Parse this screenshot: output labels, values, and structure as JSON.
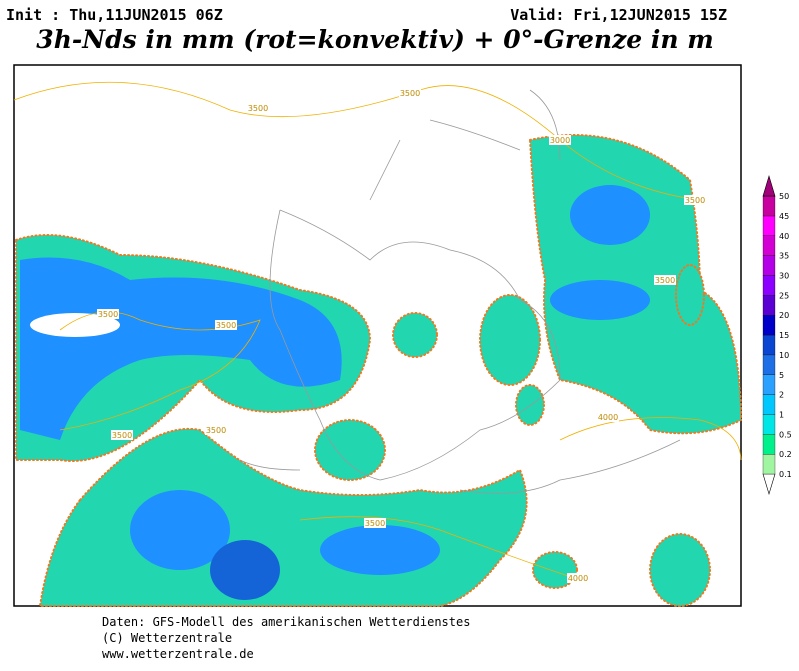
{
  "header": {
    "init": "Init : Thu,11JUN2015 06Z",
    "valid": "Valid: Fri,12JUN2015 15Z",
    "title": "3h-Nds in mm (rot=konvektiv) + 0°-Grenze in m"
  },
  "legend": {
    "labels": [
      "0.1",
      "0.2",
      "0.5",
      "1",
      "2",
      "5",
      "10",
      "15",
      "20",
      "25",
      "30",
      "35",
      "40",
      "45",
      "50"
    ]
  },
  "map": {
    "contour_labels": [
      "3500",
      "3500",
      "3000",
      "3500",
      "3500",
      "3500",
      "3500",
      "3500",
      "3500",
      "4000",
      "4000",
      "3500"
    ]
  },
  "footer": {
    "lines": [
      "Daten: GFS-Modell des amerikanischen Wetterdienstes",
      "(C) Wetterzentrale",
      "www.wetterzentrale.de"
    ]
  }
}
